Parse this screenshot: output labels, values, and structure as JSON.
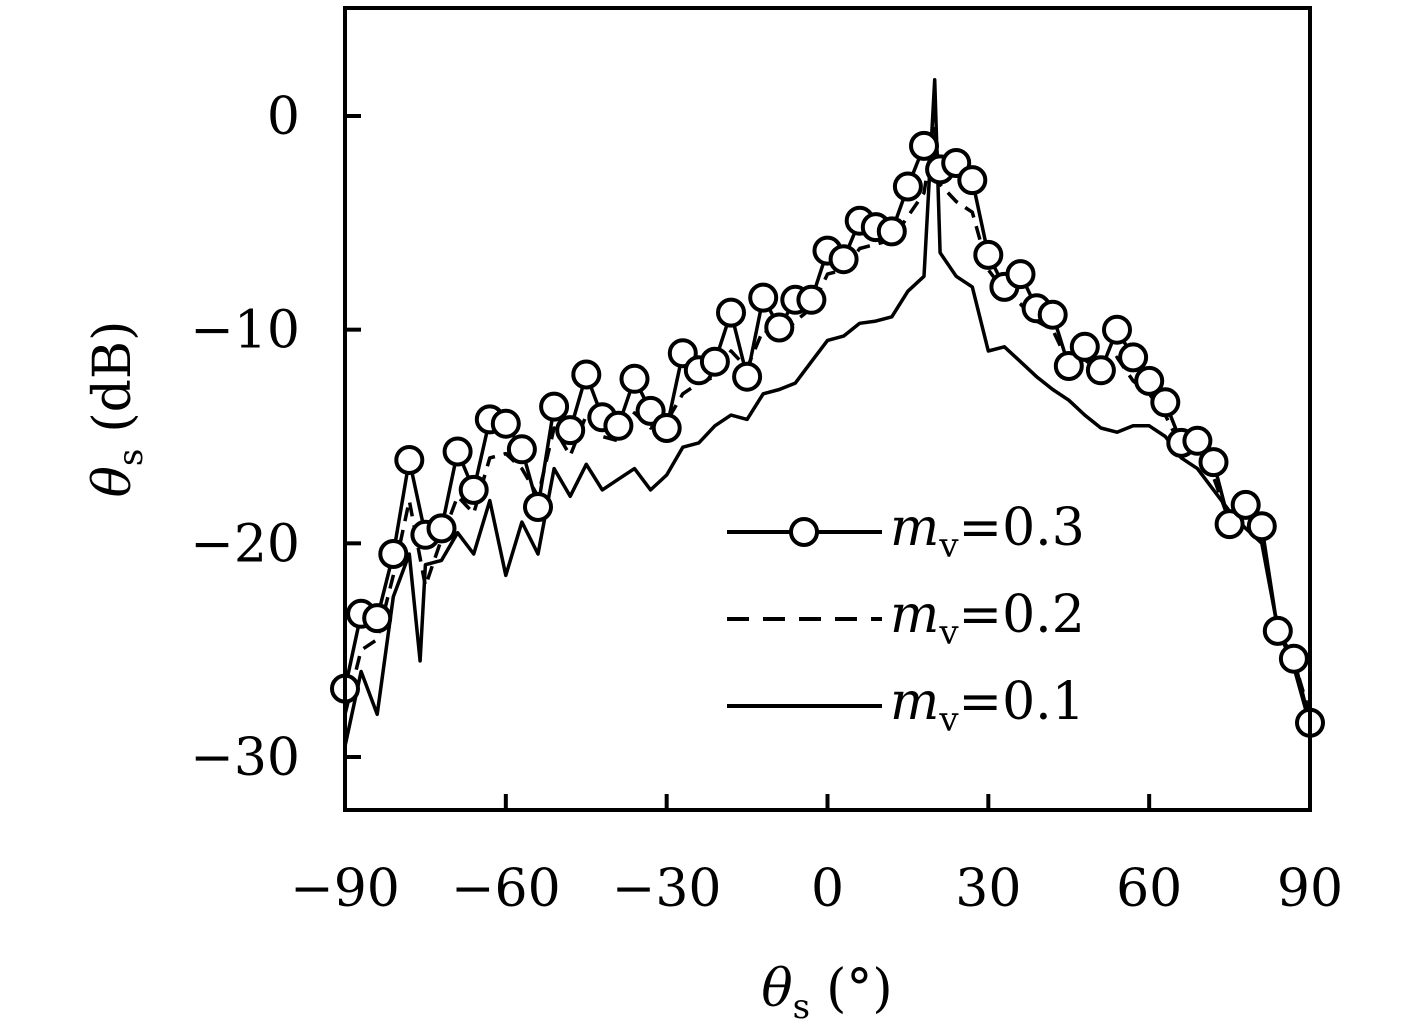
{
  "chart_data": {
    "type": "line",
    "xlabel": {
      "symbol": "θ",
      "sub": "s",
      "unit": "(°)"
    },
    "ylabel": {
      "symbol": "θ",
      "sub": "s",
      "unit": "(dB)"
    },
    "xlim": [
      -90,
      90
    ],
    "ylim": [
      -32,
      5
    ],
    "xticks": [
      -90,
      -60,
      -30,
      0,
      30,
      60,
      90
    ],
    "xtick_labels": [
      "−90",
      "−60",
      "−30",
      "0",
      "30",
      "60",
      "90"
    ],
    "yticks": [
      0,
      -10,
      -20,
      -30
    ],
    "ytick_labels": [
      "0",
      "−10",
      "−20",
      "−30"
    ],
    "grid": false,
    "legend_position": "center-right",
    "series": [
      {
        "name": "m_v=0.3",
        "legend": {
          "symbol": "m",
          "sub": "v",
          "value": "=0.3"
        },
        "style": "solid-circle",
        "x": [
          -90,
          -87,
          -84,
          -81,
          -78,
          -75,
          -72,
          -69,
          -66,
          -63,
          -60,
          -57,
          -54,
          -51,
          -48,
          -45,
          -42,
          -39,
          -36,
          -33,
          -30,
          -27,
          -24,
          -21,
          -18,
          -15,
          -12,
          -9,
          -6,
          -3,
          0,
          3,
          6,
          9,
          12,
          15,
          18,
          21,
          24,
          27,
          30,
          33,
          36,
          39,
          42,
          45,
          48,
          51,
          54,
          57,
          60,
          63,
          66,
          69,
          72,
          75,
          78,
          81,
          84,
          87,
          90
        ],
        "y": [
          -26.8,
          -23.3,
          -23.5,
          -20.5,
          -16.1,
          -19.6,
          -19.3,
          -15.7,
          -17.5,
          -14.2,
          -14.4,
          -15.6,
          -18.3,
          -13.6,
          -14.7,
          -12.1,
          -14.1,
          -14.5,
          -12.3,
          -13.8,
          -14.6,
          -11.1,
          -11.9,
          -11.5,
          -9.2,
          -12.2,
          -8.5,
          -9.9,
          -8.6,
          -8.6,
          -6.3,
          -6.7,
          -4.9,
          -5.2,
          -5.4,
          -3.3,
          -1.4,
          -2.5,
          -2.2,
          -3.0,
          -6.5,
          -8.0,
          -7.4,
          -9.0,
          -9.3,
          -11.7,
          -10.8,
          -11.9,
          -10.0,
          -11.3,
          -12.4,
          -13.4,
          -15.3,
          -15.2,
          -16.2,
          -19.1,
          -18.2,
          -19.2,
          -24.1,
          -25.4,
          -28.4
        ]
      },
      {
        "name": "m_v=0.2",
        "legend": {
          "symbol": "m",
          "sub": "v",
          "value": "=0.2"
        },
        "style": "dashed",
        "x": [
          -90,
          -87,
          -84,
          -81,
          -78,
          -75,
          -72,
          -69,
          -66,
          -63,
          -60,
          -57,
          -54,
          -51,
          -48,
          -45,
          -42,
          -39,
          -36,
          -33,
          -30,
          -27,
          -24,
          -21,
          -18,
          -15,
          -12,
          -9,
          -6,
          -3,
          0,
          3,
          6,
          9,
          12,
          15,
          18,
          20,
          21,
          24,
          27,
          30,
          33,
          36,
          39,
          42,
          45,
          48,
          51,
          54,
          57,
          60,
          63,
          66,
          69,
          72,
          75,
          78,
          81,
          84,
          87,
          90
        ],
        "y": [
          -28.0,
          -25.0,
          -24.5,
          -21.5,
          -18.0,
          -22.0,
          -19.8,
          -17.8,
          -18.6,
          -16.0,
          -15.8,
          -16.5,
          -17.8,
          -14.6,
          -15.9,
          -14.0,
          -15.0,
          -15.2,
          -13.9,
          -14.6,
          -14.3,
          -13.0,
          -12.5,
          -12.2,
          -11.0,
          -11.8,
          -10.0,
          -10.4,
          -9.6,
          -9.0,
          -7.4,
          -7.2,
          -6.2,
          -6.0,
          -5.8,
          -4.7,
          -3.6,
          -0.5,
          -3.2,
          -4.0,
          -4.5,
          -7.2,
          -8.2,
          -8.8,
          -9.6,
          -10.0,
          -11.6,
          -11.4,
          -12.0,
          -11.3,
          -12.4,
          -13.0,
          -14.0,
          -15.5,
          -15.8,
          -16.9,
          -19.0,
          -19.2,
          -19.6,
          -24.0,
          -25.5,
          -28.0
        ]
      },
      {
        "name": "m_v=0.1",
        "legend": {
          "symbol": "m",
          "sub": "v",
          "value": "=0.1"
        },
        "style": "solid",
        "x": [
          -90,
          -87,
          -84,
          -81,
          -78,
          -76,
          -75,
          -72,
          -69,
          -66,
          -63,
          -60,
          -57,
          -54,
          -51,
          -48,
          -45,
          -42,
          -39,
          -36,
          -33,
          -30,
          -27,
          -24,
          -21,
          -18,
          -15,
          -12,
          -9,
          -6,
          -3,
          0,
          3,
          6,
          9,
          12,
          15,
          18,
          20,
          21,
          24,
          27,
          30,
          33,
          36,
          39,
          42,
          45,
          48,
          51,
          54,
          57,
          60,
          63,
          66,
          69,
          72,
          75,
          78,
          81,
          84,
          87,
          90
        ],
        "y": [
          -29.5,
          -26.0,
          -28.0,
          -22.5,
          -20.5,
          -25.5,
          -21.0,
          -20.8,
          -19.5,
          -20.5,
          -18.0,
          -21.5,
          -19.0,
          -20.5,
          -16.5,
          -17.8,
          -16.3,
          -17.5,
          -17.0,
          -16.5,
          -17.5,
          -16.8,
          -15.5,
          -15.3,
          -14.5,
          -14.0,
          -14.2,
          -13.0,
          -12.8,
          -12.5,
          -11.5,
          -10.5,
          -10.3,
          -9.7,
          -9.6,
          -9.4,
          -8.2,
          -7.5,
          1.7,
          -6.4,
          -7.5,
          -8.0,
          -11.0,
          -10.8,
          -11.5,
          -12.2,
          -12.8,
          -13.3,
          -14.0,
          -14.6,
          -14.8,
          -14.5,
          -14.5,
          -15.0,
          -16.0,
          -16.5,
          -17.5,
          -18.5,
          -19.3,
          -20.0,
          -24.0,
          -25.8,
          -28.5
        ]
      }
    ]
  }
}
